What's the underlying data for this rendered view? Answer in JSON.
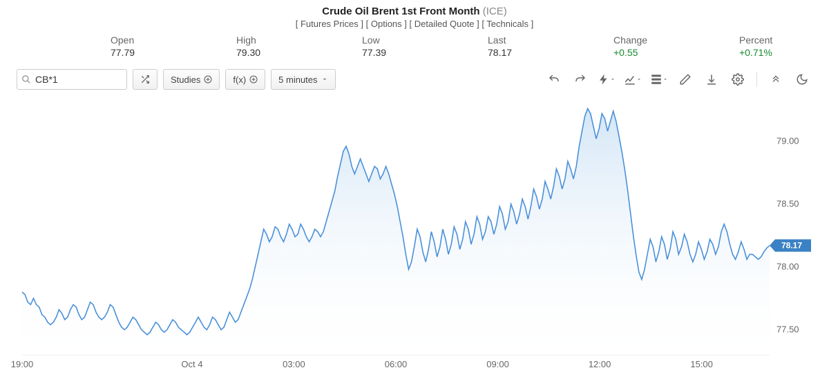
{
  "header": {
    "title": "Crude Oil Brent 1st Front Month",
    "exchange": "(ICE)",
    "nav": [
      "Futures Prices",
      "Options",
      "Detailed Quote",
      "Technicals"
    ]
  },
  "stats": [
    {
      "label": "Open",
      "value": "77.79",
      "positive": false
    },
    {
      "label": "High",
      "value": "79.30",
      "positive": false
    },
    {
      "label": "Low",
      "value": "77.39",
      "positive": false
    },
    {
      "label": "Last",
      "value": "78.17",
      "positive": false
    },
    {
      "label": "Change",
      "value": "+0.55",
      "positive": true
    },
    {
      "label": "Percent",
      "value": "+0.71%",
      "positive": true
    }
  ],
  "toolbar": {
    "search_value": "CB*1",
    "studies_label": "Studies",
    "fx_label": "f(x)",
    "interval_label": "5 minutes"
  },
  "chart": {
    "type": "area",
    "line_color": "#4a90d9",
    "area_top_color": "#cfe3f5",
    "area_bottom_color": "#ffffff",
    "background_color": "#ffffff",
    "grid_color": "#eeeeee",
    "axis_text_color": "#666666",
    "price_tag_bg": "#3b82c4",
    "price_tag_text": "78.17",
    "ylim": [
      77.3,
      79.3
    ],
    "yticks": [
      77.5,
      78.0,
      78.5,
      79.0
    ],
    "xticks": [
      {
        "t": 0,
        "label": "19:00"
      },
      {
        "t": 60,
        "label": "Oct 4"
      },
      {
        "t": 96,
        "label": "03:00"
      },
      {
        "t": 132,
        "label": "06:00"
      },
      {
        "t": 168,
        "label": "09:00"
      },
      {
        "t": 204,
        "label": "12:00"
      },
      {
        "t": 240,
        "label": "15:00"
      }
    ],
    "t_range": [
      0,
      264
    ],
    "series": [
      77.8,
      77.78,
      77.72,
      77.7,
      77.75,
      77.7,
      77.68,
      77.62,
      77.6,
      77.56,
      77.54,
      77.56,
      77.6,
      77.66,
      77.63,
      77.58,
      77.6,
      77.66,
      77.7,
      77.68,
      77.62,
      77.58,
      77.6,
      77.66,
      77.72,
      77.7,
      77.64,
      77.6,
      77.58,
      77.6,
      77.64,
      77.7,
      77.68,
      77.62,
      77.56,
      77.52,
      77.5,
      77.52,
      77.56,
      77.6,
      77.58,
      77.54,
      77.5,
      77.48,
      77.46,
      77.48,
      77.52,
      77.56,
      77.54,
      77.5,
      77.48,
      77.5,
      77.54,
      77.58,
      77.56,
      77.52,
      77.5,
      77.48,
      77.46,
      77.48,
      77.52,
      77.56,
      77.6,
      77.56,
      77.52,
      77.5,
      77.54,
      77.6,
      77.58,
      77.54,
      77.5,
      77.52,
      77.58,
      77.64,
      77.6,
      77.56,
      77.58,
      77.64,
      77.7,
      77.76,
      77.82,
      77.9,
      78.0,
      78.1,
      78.2,
      78.3,
      78.26,
      78.2,
      78.24,
      78.32,
      78.3,
      78.24,
      78.2,
      78.26,
      78.34,
      78.3,
      78.24,
      78.26,
      78.34,
      78.3,
      78.24,
      78.2,
      78.24,
      78.3,
      78.28,
      78.24,
      78.28,
      78.36,
      78.44,
      78.52,
      78.6,
      78.72,
      78.82,
      78.92,
      78.96,
      78.9,
      78.8,
      78.74,
      78.8,
      78.86,
      78.8,
      78.74,
      78.68,
      78.74,
      78.8,
      78.78,
      78.7,
      78.74,
      78.8,
      78.74,
      78.66,
      78.58,
      78.48,
      78.36,
      78.24,
      78.1,
      77.98,
      78.04,
      78.16,
      78.3,
      78.24,
      78.12,
      78.04,
      78.14,
      78.28,
      78.2,
      78.08,
      78.16,
      78.3,
      78.22,
      78.1,
      78.18,
      78.32,
      78.26,
      78.14,
      78.22,
      78.36,
      78.3,
      78.18,
      78.26,
      78.4,
      78.34,
      78.22,
      78.28,
      78.4,
      78.36,
      78.26,
      78.34,
      78.48,
      78.42,
      78.3,
      78.36,
      78.5,
      78.44,
      78.34,
      78.42,
      78.54,
      78.48,
      78.38,
      78.48,
      78.62,
      78.56,
      78.46,
      78.54,
      78.68,
      78.62,
      78.54,
      78.64,
      78.78,
      78.72,
      78.62,
      78.7,
      78.84,
      78.78,
      78.7,
      78.8,
      78.96,
      79.08,
      79.2,
      79.26,
      79.22,
      79.12,
      79.02,
      79.1,
      79.22,
      79.18,
      79.08,
      79.16,
      79.24,
      79.16,
      79.04,
      78.92,
      78.78,
      78.62,
      78.44,
      78.26,
      78.1,
      77.96,
      77.9,
      77.98,
      78.1,
      78.22,
      78.16,
      78.04,
      78.12,
      78.24,
      78.18,
      78.06,
      78.14,
      78.28,
      78.22,
      78.1,
      78.16,
      78.26,
      78.2,
      78.1,
      78.04,
      78.1,
      78.2,
      78.14,
      78.06,
      78.12,
      78.22,
      78.18,
      78.1,
      78.16,
      78.28,
      78.34,
      78.28,
      78.18,
      78.1,
      78.06,
      78.12,
      78.2,
      78.14,
      78.06,
      78.1,
      78.1,
      78.08,
      78.06,
      78.08,
      78.12,
      78.15,
      78.17
    ]
  }
}
